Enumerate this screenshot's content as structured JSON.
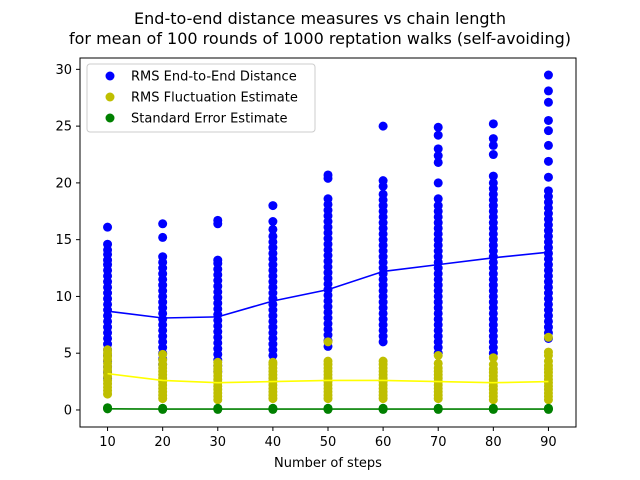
{
  "chart_data": {
    "type": "scatter",
    "title_lines": [
      "End-to-end distance measures vs chain length",
      "for mean of 100 rounds of 1000 reptation walks (self-avoiding)"
    ],
    "xlabel": "Number of steps",
    "ylabel": "",
    "xlim": [
      5,
      95
    ],
    "ylim": [
      -1.5,
      31
    ],
    "xticks": [
      10,
      20,
      30,
      40,
      50,
      60,
      70,
      80,
      90
    ],
    "yticks": [
      0,
      5,
      10,
      15,
      20,
      25,
      30
    ],
    "grid": false,
    "legend_position": "top-left",
    "series": [
      {
        "name": "RMS End-to-End Distance",
        "color": "#0000ff",
        "points": {
          "10": [
            2.8,
            3.3,
            3.8,
            4.3,
            4.8,
            5.3,
            5.8,
            6.3,
            6.8,
            7.3,
            7.8,
            8.3,
            8.8,
            9.3,
            9.8,
            10.3,
            10.8,
            11.3,
            11.8,
            12.3,
            12.8,
            13.2,
            13.7,
            14.1,
            14.6,
            16.1
          ],
          "20": [
            4.0,
            4.5,
            5.0,
            5.5,
            6.0,
            6.5,
            7.0,
            7.5,
            8.0,
            8.5,
            9.0,
            9.5,
            10.0,
            10.5,
            11.0,
            11.5,
            12.0,
            12.5,
            13.0,
            13.5,
            15.2,
            16.4
          ],
          "30": [
            3.4,
            3.9,
            4.4,
            4.9,
            5.4,
            5.9,
            6.4,
            6.9,
            7.4,
            7.9,
            8.4,
            8.9,
            9.4,
            9.9,
            10.4,
            10.9,
            11.4,
            11.9,
            12.4,
            12.9,
            13.2,
            16.4,
            16.7
          ],
          "40": [
            4.8,
            5.3,
            5.8,
            6.3,
            6.8,
            7.3,
            7.8,
            8.3,
            8.8,
            9.3,
            9.8,
            10.3,
            10.8,
            11.3,
            11.8,
            12.3,
            12.8,
            13.3,
            13.8,
            14.3,
            14.8,
            15.3,
            15.9,
            16.6,
            18.0
          ],
          "50": [
            5.6,
            6.1,
            6.6,
            7.1,
            7.6,
            8.1,
            8.6,
            9.1,
            9.6,
            10.1,
            10.6,
            11.1,
            11.6,
            12.1,
            12.6,
            13.1,
            13.6,
            14.1,
            14.6,
            15.1,
            15.6,
            16.1,
            16.6,
            17.1,
            17.6,
            18.1,
            18.6,
            20.4,
            20.7
          ],
          "60": [
            6.0,
            6.5,
            7.0,
            7.5,
            8.0,
            8.5,
            9.0,
            9.5,
            10.0,
            10.5,
            11.0,
            11.5,
            12.0,
            12.5,
            13.0,
            13.5,
            14.0,
            14.5,
            15.0,
            15.5,
            16.0,
            16.5,
            17.0,
            17.5,
            18.0,
            18.5,
            19.0,
            19.7,
            20.2,
            25.0
          ],
          "70": [
            5.0,
            5.5,
            6.0,
            6.5,
            7.0,
            7.5,
            8.0,
            8.5,
            9.0,
            9.5,
            10.0,
            10.5,
            11.0,
            11.5,
            12.0,
            12.5,
            13.0,
            13.5,
            14.0,
            14.5,
            15.0,
            15.5,
            16.0,
            16.5,
            17.0,
            17.5,
            18.0,
            18.6,
            20.0,
            21.8,
            22.4,
            23.0,
            24.2,
            24.9
          ],
          "80": [
            5.0,
            5.5,
            6.0,
            6.5,
            7.0,
            7.5,
            8.0,
            8.5,
            9.0,
            9.5,
            10.0,
            10.5,
            11.0,
            11.5,
            12.0,
            12.5,
            13.0,
            13.5,
            14.0,
            14.5,
            15.0,
            15.5,
            16.0,
            16.5,
            17.0,
            17.5,
            18.0,
            18.5,
            19.0,
            19.5,
            20.0,
            20.6,
            22.5,
            23.3,
            23.9,
            25.2
          ],
          "90": [
            6.3,
            6.8,
            7.3,
            7.8,
            8.3,
            8.8,
            9.3,
            9.8,
            10.3,
            10.8,
            11.3,
            11.8,
            12.3,
            12.8,
            13.3,
            13.8,
            14.3,
            14.8,
            15.3,
            15.8,
            16.3,
            16.8,
            17.3,
            17.8,
            18.3,
            18.8,
            19.3,
            20.5,
            21.9,
            23.3,
            24.6,
            25.5,
            27.1,
            28.1,
            29.5
          ]
        },
        "mean_line": [
          8.7,
          8.1,
          8.2,
          9.6,
          10.6,
          12.2,
          12.8,
          13.4,
          13.9
        ]
      },
      {
        "name": "RMS Fluctuation Estimate",
        "color": "#bfbf00",
        "line_color": "#ffff00",
        "points": {
          "10": [
            1.4,
            1.7,
            2.0,
            2.3,
            2.6,
            2.9,
            3.2,
            3.5,
            3.8,
            4.1,
            4.4,
            4.7,
            5.0,
            5.3
          ],
          "20": [
            1.0,
            1.3,
            1.6,
            1.9,
            2.2,
            2.5,
            2.8,
            3.1,
            3.4,
            3.7,
            4.0,
            4.4,
            4.9
          ],
          "30": [
            0.9,
            1.2,
            1.5,
            1.8,
            2.1,
            2.4,
            2.7,
            3.0,
            3.3,
            3.6,
            3.9,
            4.2
          ],
          "40": [
            1.0,
            1.3,
            1.6,
            1.9,
            2.2,
            2.5,
            2.8,
            3.1,
            3.4,
            3.7,
            4.0,
            4.2
          ],
          "50": [
            1.0,
            1.3,
            1.6,
            1.9,
            2.2,
            2.5,
            2.8,
            3.1,
            3.4,
            3.7,
            4.0,
            4.3,
            6.0
          ],
          "60": [
            1.0,
            1.3,
            1.6,
            1.9,
            2.2,
            2.5,
            2.8,
            3.1,
            3.4,
            3.7,
            4.0,
            4.3
          ],
          "70": [
            1.0,
            1.3,
            1.6,
            1.9,
            2.2,
            2.5,
            2.8,
            3.1,
            3.4,
            3.7,
            4.1,
            4.8
          ],
          "80": [
            0.9,
            1.2,
            1.5,
            1.8,
            2.1,
            2.4,
            2.7,
            3.0,
            3.3,
            3.6,
            4.0,
            4.6
          ],
          "90": [
            0.9,
            1.2,
            1.5,
            1.8,
            2.1,
            2.4,
            2.7,
            3.0,
            3.3,
            3.6,
            3.9,
            4.3,
            4.8,
            5.1,
            6.4
          ]
        },
        "mean_line": [
          3.2,
          2.6,
          2.4,
          2.5,
          2.6,
          2.6,
          2.5,
          2.4,
          2.5
        ]
      },
      {
        "name": "Standard Error Estimate",
        "color": "#008000",
        "points": {
          "10": [
            0.1,
            0.15,
            0.2
          ],
          "20": [
            0.05,
            0.1,
            0.15
          ],
          "30": [
            0.05,
            0.1,
            0.15
          ],
          "40": [
            0.05,
            0.1,
            0.15
          ],
          "50": [
            0.05,
            0.1,
            0.15
          ],
          "60": [
            0.05,
            0.1,
            0.15
          ],
          "70": [
            0.05,
            0.1,
            0.15
          ],
          "80": [
            0.05,
            0.1,
            0.15
          ],
          "90": [
            0.05,
            0.1,
            0.15
          ]
        },
        "mean_line": [
          0.1,
          0.08,
          0.08,
          0.08,
          0.08,
          0.08,
          0.08,
          0.08,
          0.08
        ]
      }
    ]
  }
}
